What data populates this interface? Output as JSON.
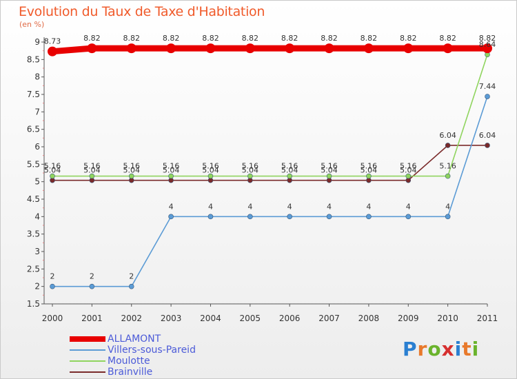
{
  "title": "Evolution du Taux de Taxe d'Habitation",
  "subtitle": "(en %)",
  "logo": {
    "text": "Proxiti",
    "letters": [
      "P",
      "r",
      "o",
      "x",
      "i",
      "t",
      "i"
    ],
    "colors": [
      "#2a7fd1",
      "#e8792b",
      "#6ab32c",
      "#d62f2f",
      "#2a7fd1",
      "#e8792b",
      "#6ab32c"
    ]
  },
  "chart_data": {
    "type": "line",
    "title": "Evolution du Taux de Taxe d'Habitation",
    "ylabel": "(en %)",
    "xlabel": "",
    "x": [
      "2000",
      "2001",
      "2002",
      "2003",
      "2004",
      "2005",
      "2006",
      "2007",
      "2008",
      "2009",
      "2010",
      "2011"
    ],
    "ylim": [
      1.5,
      9
    ],
    "yticks": [
      "1.5",
      "2",
      "2.5",
      "3",
      "3.5",
      "4",
      "4.5",
      "5",
      "5.5",
      "6",
      "6.5",
      "7",
      "7.5",
      "8",
      "8.5",
      "9"
    ],
    "grid": false,
    "legend_position": "bottom-left",
    "series": [
      {
        "name": "ALLAMONT",
        "color": "#e80000",
        "values": [
          8.73,
          8.82,
          8.82,
          8.82,
          8.82,
          8.82,
          8.82,
          8.82,
          8.82,
          8.82,
          8.82,
          8.82
        ],
        "labels": [
          "8.73",
          "8.82",
          "8.82",
          "8.82",
          "8.82",
          "8.82",
          "8.82",
          "8.82",
          "8.82",
          "8.82",
          "8.82",
          "8.82"
        ]
      },
      {
        "name": "Villers-sous-Pareid",
        "color": "#5b9bd5",
        "values": [
          2,
          2,
          2,
          4,
          4,
          4,
          4,
          4,
          4,
          4,
          4,
          7.44
        ],
        "labels": [
          "2",
          "2",
          "2",
          "4",
          "4",
          "4",
          "4",
          "4",
          "4",
          "4",
          "4",
          "7.44"
        ]
      },
      {
        "name": "Moulotte",
        "color": "#8fd45e",
        "values": [
          5.16,
          5.16,
          5.16,
          5.16,
          5.16,
          5.16,
          5.16,
          5.16,
          5.16,
          5.16,
          5.16,
          8.64
        ],
        "labels": [
          "5.16",
          "5.16",
          "5.16",
          "5.16",
          "5.16",
          "5.16",
          "5.16",
          "5.16",
          "5.16",
          "5.16",
          "5.16",
          "8.64"
        ]
      },
      {
        "name": "Brainville",
        "color": "#7a2a2a",
        "values": [
          5.04,
          5.04,
          5.04,
          5.04,
          5.04,
          5.04,
          5.04,
          5.04,
          5.04,
          5.04,
          6.04,
          6.04
        ],
        "labels": [
          "5.04",
          "5.04",
          "5.04",
          "5.04",
          "5.04",
          "5.04",
          "5.04",
          "5.04",
          "5.04",
          "5.04",
          "6.04",
          "6.04"
        ]
      }
    ]
  }
}
